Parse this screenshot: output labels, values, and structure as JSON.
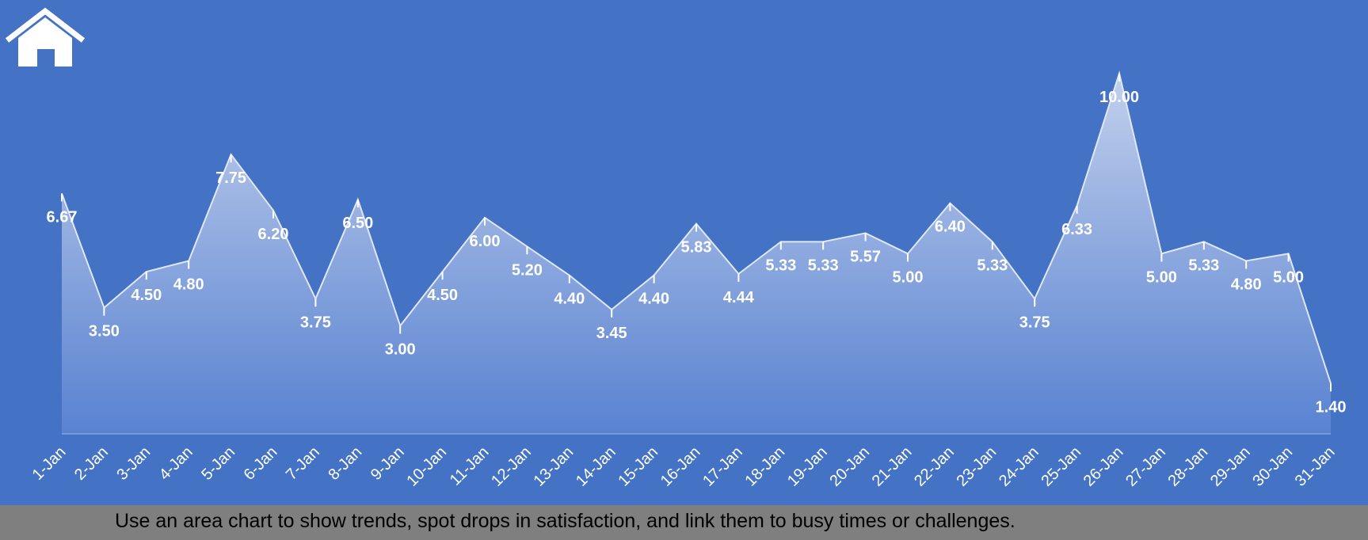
{
  "theme": {
    "background": "#4472c4",
    "area_top": "#c9d5ef",
    "area_bottom": "#5b84d2",
    "footer_bg": "#7f7f7f"
  },
  "home_button": {
    "icon": "home-icon"
  },
  "footer": {
    "text": "Use an area chart to show trends, spot drops in satisfaction, and link them to busy times or challenges."
  },
  "chart_data": {
    "type": "area",
    "title": "",
    "xlabel": "",
    "ylabel": "",
    "ylim": [
      0,
      10.5
    ],
    "grid": false,
    "legend": "none",
    "categories": [
      "1-Jan",
      "2-Jan",
      "3-Jan",
      "4-Jan",
      "5-Jan",
      "6-Jan",
      "7-Jan",
      "8-Jan",
      "9-Jan",
      "10-Jan",
      "11-Jan",
      "12-Jan",
      "13-Jan",
      "14-Jan",
      "15-Jan",
      "16-Jan",
      "17-Jan",
      "18-Jan",
      "19-Jan",
      "20-Jan",
      "21-Jan",
      "22-Jan",
      "23-Jan",
      "24-Jan",
      "25-Jan",
      "26-Jan",
      "27-Jan",
      "28-Jan",
      "29-Jan",
      "30-Jan",
      "31-Jan"
    ],
    "values": [
      6.67,
      3.5,
      4.5,
      4.8,
      7.75,
      6.2,
      3.75,
      6.5,
      3.0,
      4.5,
      6.0,
      5.2,
      4.4,
      3.45,
      4.4,
      5.83,
      4.44,
      5.33,
      5.33,
      5.57,
      5.0,
      6.4,
      5.33,
      3.75,
      6.33,
      10.0,
      5.0,
      5.33,
      4.8,
      5.0,
      1.4
    ],
    "data_labels": [
      "6.67",
      "3.50",
      "4.50",
      "4.80",
      "7.75",
      "6.20",
      "3.75",
      "6.50",
      "3.00",
      "4.50",
      "6.00",
      "5.20",
      "4.40",
      "3.45",
      "4.40",
      "5.83",
      "4.44",
      "5.33",
      "5.33",
      "5.57",
      "5.00",
      "6.40",
      "5.33",
      "3.75",
      "6.33",
      "10.00",
      "5.00",
      "5.33",
      "4.80",
      "5.00",
      "1.40"
    ]
  }
}
